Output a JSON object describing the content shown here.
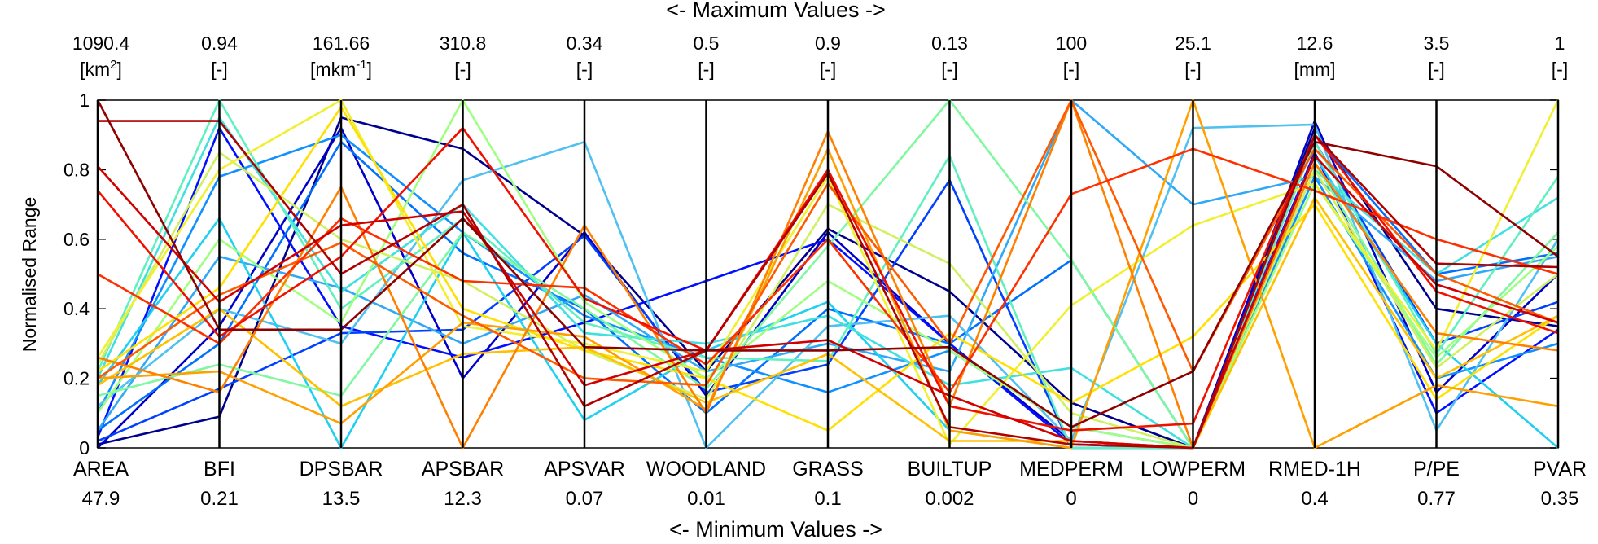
{
  "chart_data": {
    "type": "line",
    "subtype": "parallel-coordinates",
    "top_caption": "<- Maximum Values ->",
    "bottom_caption": "<- Minimum Values ->",
    "ylabel": "Normalised Range",
    "ylim": [
      0,
      1
    ],
    "y_ticks": [
      "0",
      "0.2",
      "0.4",
      "0.6",
      "0.8",
      "1"
    ],
    "axes": [
      {
        "name": "AREA",
        "max": "1090.4",
        "unit": "km",
        "unit_sup": "2",
        "min": "47.9"
      },
      {
        "name": "BFI",
        "max": "0.94",
        "unit": "-",
        "unit_sup": "",
        "min": "0.21"
      },
      {
        "name": "DPSBAR",
        "max": "161.66",
        "unit": "mkm",
        "unit_sup": "-1",
        "min": "13.5"
      },
      {
        "name": "APSBAR",
        "max": "310.8",
        "unit": "-",
        "unit_sup": "",
        "min": "12.3"
      },
      {
        "name": "APSVAR",
        "max": "0.34",
        "unit": "-",
        "unit_sup": "",
        "min": "0.07"
      },
      {
        "name": "WOODLAND",
        "max": "0.5",
        "unit": "-",
        "unit_sup": "",
        "min": "0.01"
      },
      {
        "name": "GRASS",
        "max": "0.9",
        "unit": "-",
        "unit_sup": "",
        "min": "0.1"
      },
      {
        "name": "BUILTUP",
        "max": "0.13",
        "unit": "-",
        "unit_sup": "",
        "min": "0.002"
      },
      {
        "name": "MEDPERM",
        "max": "100",
        "unit": "-",
        "unit_sup": "",
        "min": "0"
      },
      {
        "name": "LOWPERM",
        "max": "25.1",
        "unit": "-",
        "unit_sup": "",
        "min": "0"
      },
      {
        "name": "RMED-1H",
        "max": "12.6",
        "unit": "mm",
        "unit_sup": "",
        "min": "0.4"
      },
      {
        "name": "P/PE",
        "max": "3.5",
        "unit": "-",
        "unit_sup": "",
        "min": "0.77"
      },
      {
        "name": "PVAR",
        "max": "1",
        "unit": "-",
        "unit_sup": "",
        "min": "0.35"
      }
    ],
    "series": [
      {
        "color": "#00008f",
        "values": [
          0.01,
          0.09,
          0.95,
          0.86,
          0.61,
          0.22,
          0.63,
          0.45,
          0.13,
          0.0,
          0.92,
          0.4,
          0.35
        ]
      },
      {
        "color": "#0000c8",
        "values": [
          0.0,
          0.35,
          0.92,
          0.2,
          0.62,
          0.15,
          0.62,
          0.3,
          0.02,
          0.0,
          0.94,
          0.16,
          0.5
        ]
      },
      {
        "color": "#0010ff",
        "values": [
          0.03,
          0.92,
          0.35,
          0.26,
          0.36,
          0.48,
          0.6,
          0.3,
          0.01,
          0.0,
          0.85,
          0.1,
          0.34
        ]
      },
      {
        "color": "#0040ff",
        "values": [
          0.02,
          0.17,
          0.33,
          0.34,
          0.61,
          0.16,
          0.24,
          0.77,
          0.0,
          0.0,
          0.88,
          0.3,
          0.42
        ]
      },
      {
        "color": "#0070ff",
        "values": [
          0.05,
          0.3,
          0.88,
          0.56,
          0.4,
          0.1,
          0.4,
          0.3,
          0.54,
          0.0,
          0.9,
          0.5,
          0.56
        ]
      },
      {
        "color": "#1090ff",
        "values": [
          0.1,
          0.78,
          0.9,
          0.62,
          0.38,
          0.26,
          0.16,
          0.28,
          0.06,
          0.0,
          0.78,
          0.2,
          0.3
        ]
      },
      {
        "color": "#30a8f8",
        "values": [
          0.05,
          0.55,
          0.46,
          0.3,
          0.44,
          0.22,
          0.3,
          0.22,
          1.0,
          0.7,
          0.78,
          0.48,
          0.55
        ]
      },
      {
        "color": "#50c0f0",
        "values": [
          0.12,
          0.4,
          0.3,
          0.77,
          0.88,
          0.0,
          0.35,
          0.38,
          0.02,
          0.92,
          0.93,
          0.05,
          0.6
        ]
      },
      {
        "color": "#20d0f0",
        "values": [
          0.18,
          0.66,
          0.0,
          0.62,
          0.08,
          0.28,
          0.42,
          0.05,
          0.0,
          0.0,
          0.84,
          0.3,
          0.0
        ]
      },
      {
        "color": "#40e0e0",
        "values": [
          0.2,
          0.95,
          0.45,
          0.7,
          0.33,
          0.3,
          0.38,
          0.18,
          0.23,
          0.0,
          0.8,
          0.5,
          0.72
        ]
      },
      {
        "color": "#60f0c0",
        "values": [
          0.22,
          1.0,
          0.4,
          0.66,
          0.36,
          0.26,
          0.25,
          0.84,
          0.0,
          0.0,
          0.88,
          0.27,
          0.78
        ]
      },
      {
        "color": "#80f8a0",
        "values": [
          0.15,
          0.24,
          0.15,
          0.62,
          0.4,
          0.17,
          0.58,
          1.0,
          0.54,
          0.0,
          0.82,
          0.24,
          0.62
        ]
      },
      {
        "color": "#a0ff80",
        "values": [
          0.1,
          0.6,
          0.36,
          1.0,
          0.42,
          0.2,
          0.48,
          0.28,
          0.06,
          0.0,
          0.76,
          0.26,
          0.58
        ]
      },
      {
        "color": "#d0f060",
        "values": [
          0.24,
          0.85,
          0.6,
          0.48,
          0.28,
          0.14,
          0.7,
          0.53,
          0.1,
          0.0,
          0.8,
          0.23,
          0.5
        ]
      },
      {
        "color": "#f0f030",
        "values": [
          0.26,
          0.8,
          1.0,
          0.35,
          0.3,
          0.22,
          0.78,
          0.01,
          0.41,
          0.64,
          0.76,
          0.28,
          1.0
        ]
      },
      {
        "color": "#ffe000",
        "values": [
          0.22,
          0.46,
          0.98,
          0.4,
          0.28,
          0.2,
          0.05,
          0.33,
          0.13,
          0.32,
          0.7,
          0.14,
          0.38
        ]
      },
      {
        "color": "#ffc000",
        "values": [
          0.18,
          0.4,
          0.12,
          0.27,
          0.29,
          0.13,
          0.27,
          0.02,
          0.02,
          0.0,
          0.72,
          0.2,
          0.38
        ]
      },
      {
        "color": "#ffa000",
        "values": [
          0.2,
          0.22,
          0.07,
          0.36,
          0.32,
          0.11,
          0.86,
          0.05,
          0.0,
          1.0,
          0.0,
          0.18,
          0.12
        ]
      },
      {
        "color": "#ff8000",
        "values": [
          0.26,
          0.16,
          0.75,
          0.0,
          0.64,
          0.1,
          0.91,
          0.12,
          1.0,
          0.0,
          0.82,
          0.33,
          0.28
        ]
      },
      {
        "color": "#ff5a00",
        "values": [
          0.2,
          0.44,
          0.59,
          0.38,
          0.2,
          0.18,
          0.76,
          0.3,
          1.0,
          0.22,
          0.86,
          0.5,
          0.36
        ]
      },
      {
        "color": "#ff3000",
        "values": [
          0.5,
          0.3,
          0.66,
          0.48,
          0.46,
          0.24,
          0.6,
          0.16,
          0.73,
          0.86,
          0.74,
          0.6,
          0.5
        ]
      },
      {
        "color": "#f01000",
        "values": [
          0.74,
          0.32,
          0.55,
          0.92,
          0.43,
          0.28,
          0.8,
          0.12,
          0.05,
          0.07,
          0.9,
          0.45,
          0.33
        ]
      },
      {
        "color": "#d00000",
        "values": [
          0.81,
          0.42,
          0.64,
          0.68,
          0.18,
          0.28,
          0.31,
          0.15,
          0.02,
          0.0,
          0.84,
          0.47,
          0.36
        ]
      },
      {
        "color": "#b00000",
        "values": [
          0.94,
          0.94,
          0.5,
          0.7,
          0.12,
          0.28,
          0.79,
          0.06,
          0.01,
          0.0,
          0.9,
          0.53,
          0.52
        ]
      },
      {
        "color": "#8f0000",
        "values": [
          1.0,
          0.34,
          0.34,
          0.66,
          0.29,
          0.28,
          0.28,
          0.29,
          0.06,
          0.22,
          0.88,
          0.81,
          0.55
        ]
      }
    ]
  }
}
